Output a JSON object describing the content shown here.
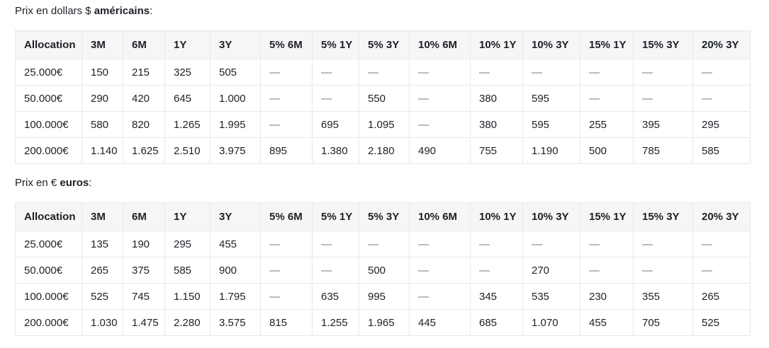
{
  "empty_marker": "—",
  "colors": {
    "header_bg": "#f6f6f7",
    "border": "#e8e8ea",
    "text": "#1c2026",
    "empty_dash": "#76787d"
  },
  "titles": {
    "usd": {
      "prefix": "Prix en dollars $ ",
      "bold": "américains",
      "suffix": ":"
    },
    "eur": {
      "prefix": "Prix en € ",
      "bold": "euros",
      "suffix": ":"
    }
  },
  "tables": [
    {
      "name": "prices-usd",
      "headers": [
        "Allocation",
        "3M",
        "6M",
        "1Y",
        "3Y",
        "5% 6M",
        "5% 1Y",
        "5% 3Y",
        "10% 6M",
        "10% 1Y",
        "10% 3Y",
        "15% 1Y",
        "15% 3Y",
        "20% 3Y"
      ],
      "rows": [
        [
          "25.000€",
          "150",
          "215",
          "325",
          "505",
          "—",
          "—",
          "—",
          "—",
          "—",
          "—",
          "—",
          "—",
          "—"
        ],
        [
          "50.000€",
          "290",
          "420",
          "645",
          "1.000",
          "—",
          "—",
          "550",
          "—",
          "380",
          "595",
          "—",
          "—",
          "—"
        ],
        [
          "100.000€",
          "580",
          "820",
          "1.265",
          "1.995",
          "—",
          "695",
          "1.095",
          "—",
          "380",
          "595",
          "255",
          "395",
          "295"
        ],
        [
          "200.000€",
          "1.140",
          "1.625",
          "2.510",
          "3.975",
          "895",
          "1.380",
          "2.180",
          "490",
          "755",
          "1.190",
          "500",
          "785",
          "585"
        ]
      ]
    },
    {
      "name": "prices-eur",
      "headers": [
        "Allocation",
        "3M",
        "6M",
        "1Y",
        "3Y",
        "5% 6M",
        "5% 1Y",
        "5% 3Y",
        "10% 6M",
        "10% 1Y",
        "10% 3Y",
        "15% 1Y",
        "15% 3Y",
        "20% 3Y"
      ],
      "rows": [
        [
          "25.000€",
          "135",
          "190",
          "295",
          "455",
          "—",
          "—",
          "—",
          "—",
          "—",
          "—",
          "—",
          "—",
          "—"
        ],
        [
          "50.000€",
          "265",
          "375",
          "585",
          "900",
          "—",
          "—",
          "500",
          "—",
          "—",
          "270",
          "—",
          "—",
          "—"
        ],
        [
          "100.000€",
          "525",
          "745",
          "1.150",
          "1.795",
          "—",
          "635",
          "995",
          "—",
          "345",
          "535",
          "230",
          "355",
          "265"
        ],
        [
          "200.000€",
          "1.030",
          "1.475",
          "2.280",
          "3.575",
          "815",
          "1.255",
          "1.965",
          "445",
          "685",
          "1.070",
          "455",
          "705",
          "525"
        ]
      ]
    }
  ]
}
